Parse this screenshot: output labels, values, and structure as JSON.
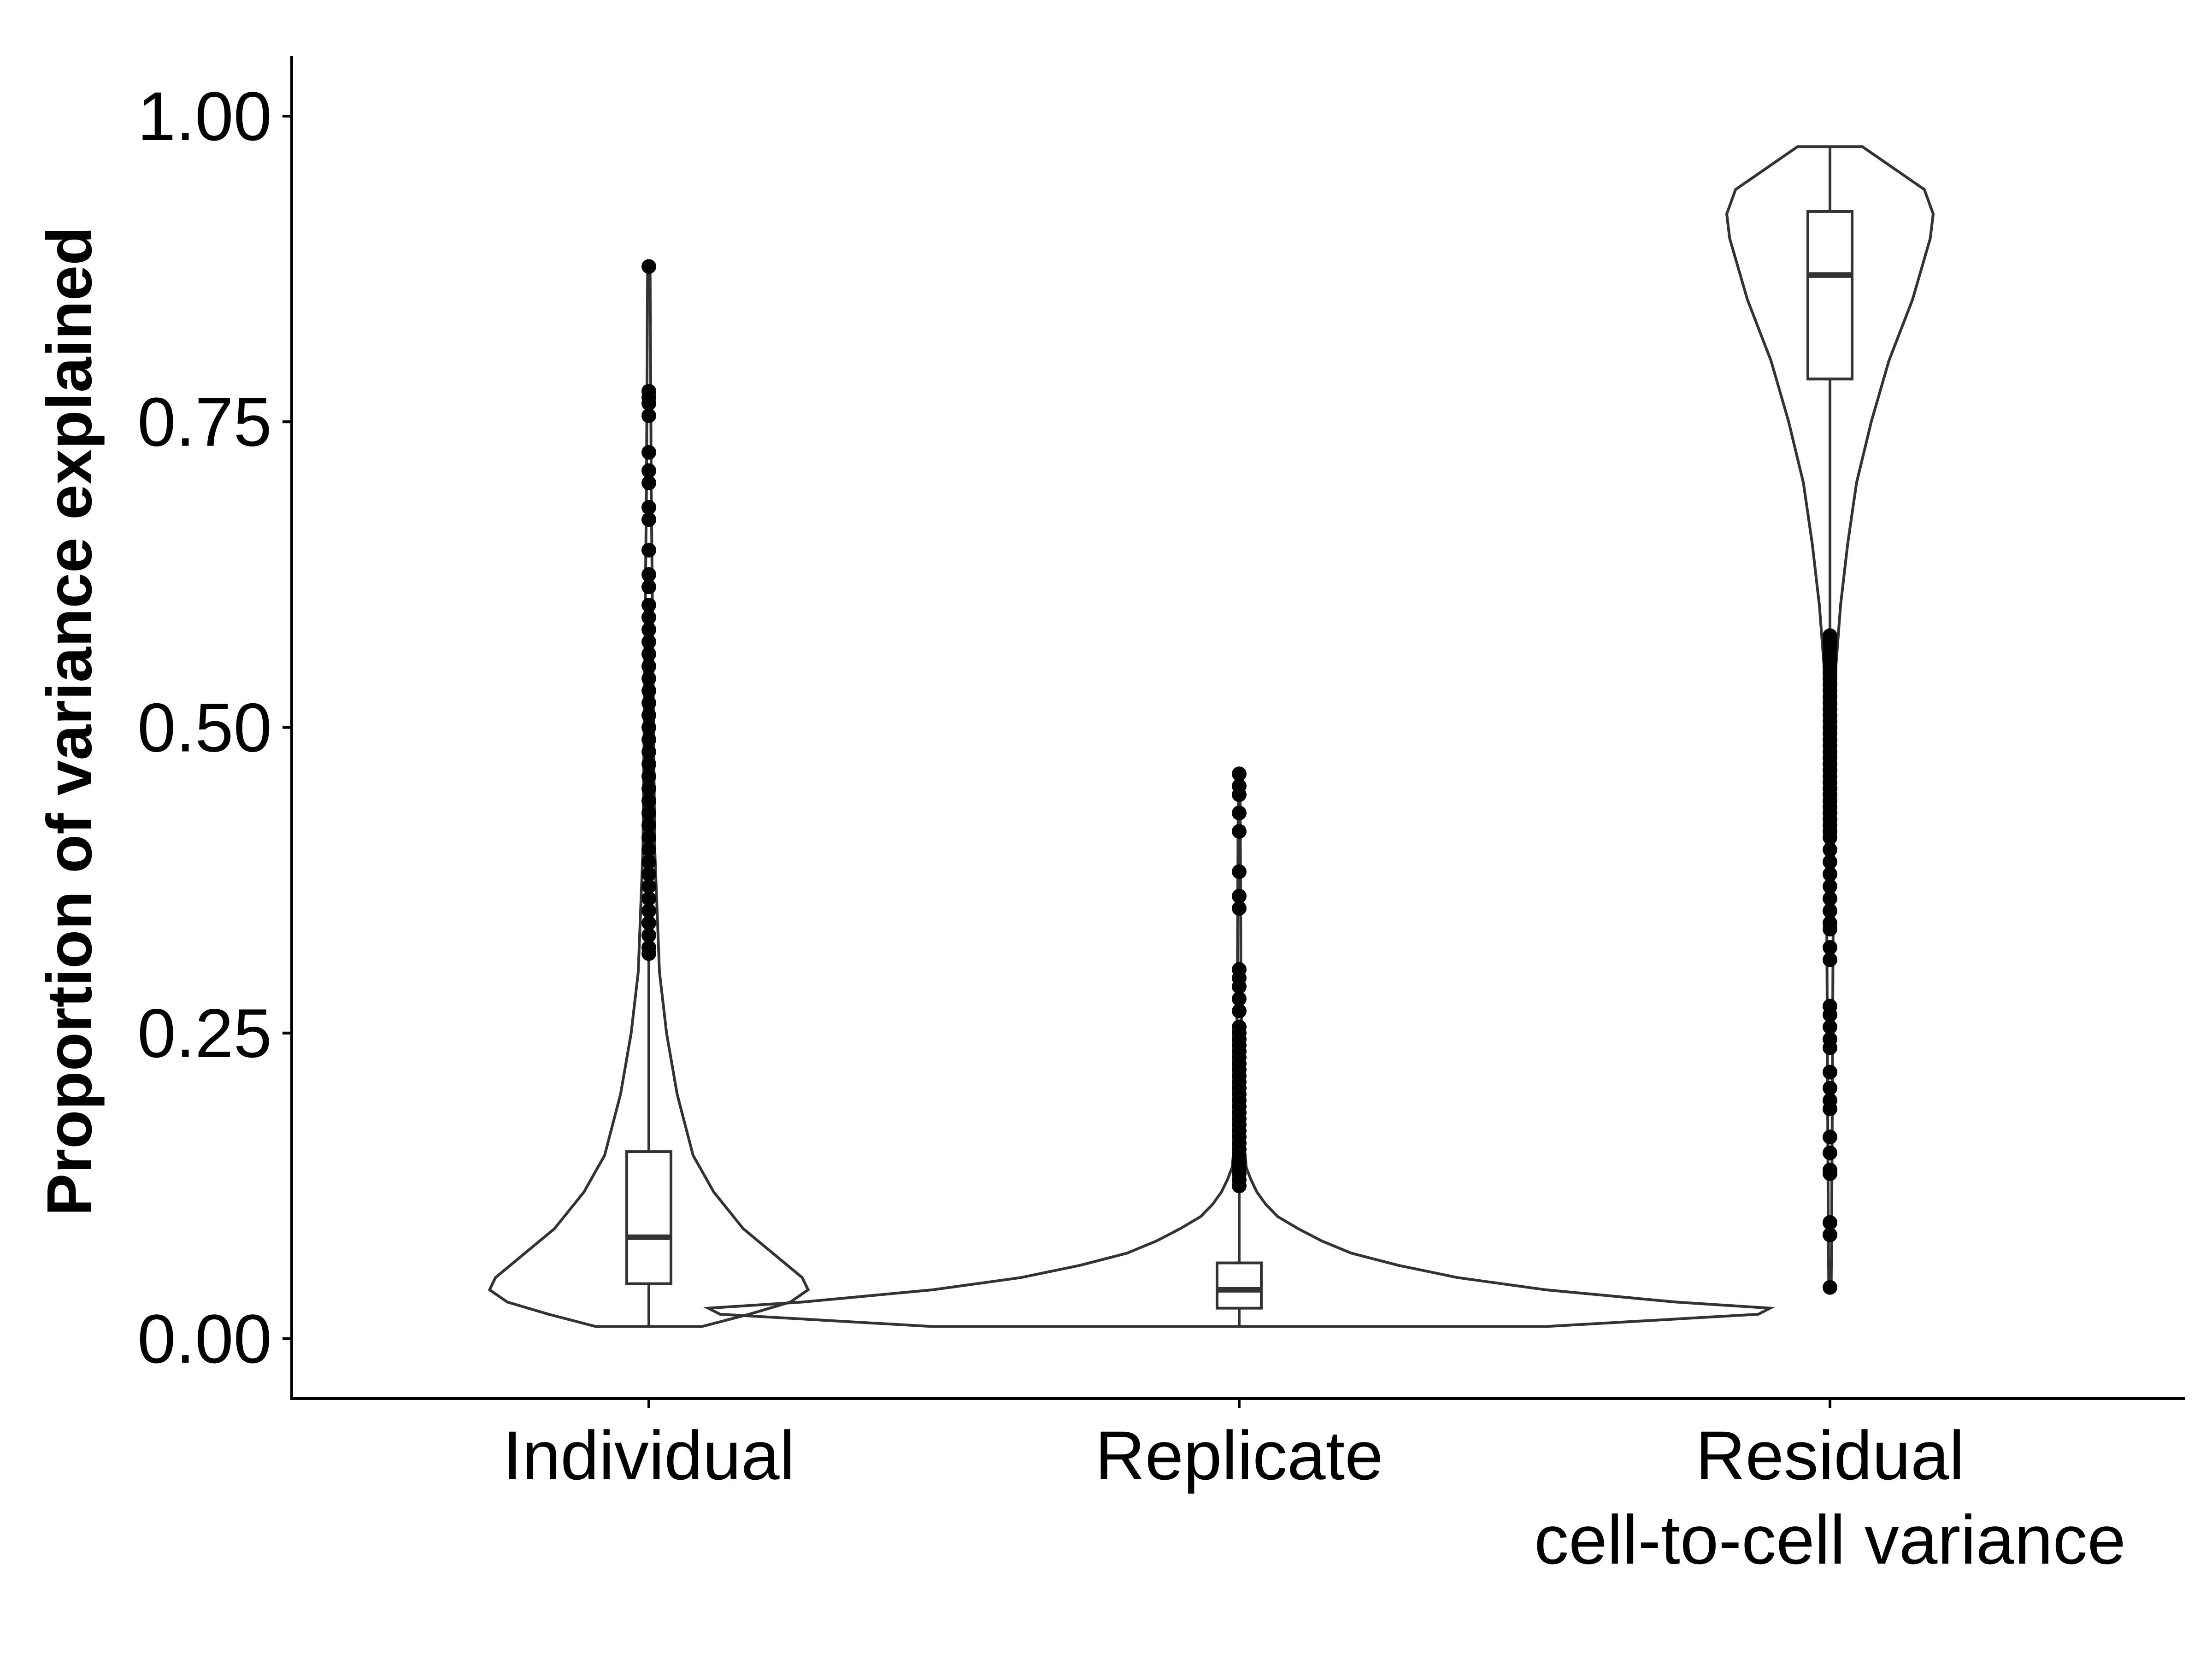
{
  "chart_data": {
    "type": "violin",
    "title": "",
    "xlabel": "",
    "ylabel": "Proportion of variance explained",
    "ylim": [
      -0.05,
      1.05
    ],
    "yticks": [
      0.0,
      0.25,
      0.5,
      0.75,
      1.0
    ],
    "ytick_labels": [
      "0.00",
      "0.25",
      "0.50",
      "0.75",
      "1.00"
    ],
    "grid": false,
    "legend": "none",
    "colors": {
      "outline": "#333333",
      "points": "#000000",
      "axis": "#000000"
    },
    "categories": [
      {
        "label_lines": [
          "Individual"
        ],
        "box": {
          "whisker_low": 0.01,
          "q1": 0.045,
          "median": 0.083,
          "q3": 0.153,
          "whisker_high": 0.31
        },
        "violin": {
          "y": [
            0.01,
            0.02,
            0.03,
            0.04,
            0.05,
            0.07,
            0.09,
            0.12,
            0.15,
            0.2,
            0.25,
            0.3,
            0.4,
            0.5,
            0.6,
            0.7,
            0.8,
            0.877
          ],
          "half_width": [
            0.09,
            0.17,
            0.24,
            0.27,
            0.26,
            0.21,
            0.16,
            0.11,
            0.075,
            0.048,
            0.03,
            0.018,
            0.01,
            0.008,
            0.006,
            0.004,
            0.003,
            0.002
          ]
        },
        "outliers": [
          0.877,
          0.775,
          0.77,
          0.765,
          0.755,
          0.725,
          0.71,
          0.7,
          0.68,
          0.67,
          0.645,
          0.625,
          0.615,
          0.6,
          0.59,
          0.58,
          0.57,
          0.56,
          0.55,
          0.54,
          0.53,
          0.52,
          0.51,
          0.5,
          0.49,
          0.48,
          0.47,
          0.46,
          0.45,
          0.44,
          0.43,
          0.42,
          0.41,
          0.4,
          0.39,
          0.38,
          0.37,
          0.36,
          0.35,
          0.34,
          0.33,
          0.32,
          0.315
        ]
      },
      {
        "label_lines": [
          "Replicate"
        ],
        "box": {
          "whisker_low": 0.01,
          "q1": 0.025,
          "median": 0.04,
          "q3": 0.062,
          "whisker_high": 0.12
        },
        "violin": {
          "y": [
            0.01,
            0.015,
            0.02,
            0.025,
            0.03,
            0.04,
            0.05,
            0.06,
            0.07,
            0.08,
            0.09,
            0.1,
            0.11,
            0.12,
            0.13,
            0.14,
            0.16,
            0.2,
            0.3,
            0.4,
            0.46
          ],
          "half_width": [
            0.52,
            0.7,
            0.88,
            0.9,
            0.74,
            0.52,
            0.37,
            0.27,
            0.19,
            0.14,
            0.1,
            0.065,
            0.045,
            0.03,
            0.02,
            0.012,
            0.008,
            0.005,
            0.003,
            0.002,
            0.0015
          ]
        },
        "outliers": [
          0.462,
          0.452,
          0.445,
          0.43,
          0.415,
          0.382,
          0.362,
          0.352,
          0.302,
          0.295,
          0.288,
          0.278,
          0.268,
          0.255,
          0.25,
          0.245,
          0.24,
          0.235,
          0.23,
          0.225,
          0.22,
          0.215,
          0.21,
          0.205,
          0.2,
          0.195,
          0.19,
          0.185,
          0.18,
          0.175,
          0.17,
          0.165,
          0.16,
          0.155,
          0.15,
          0.145,
          0.14,
          0.135,
          0.13,
          0.125
        ]
      },
      {
        "label_lines": [
          "Residual",
          "cell-to-cell variance"
        ],
        "box": {
          "whisker_low": 0.58,
          "q1": 0.785,
          "median": 0.87,
          "q3": 0.922,
          "whisker_high": 0.975
        },
        "violin": {
          "y": [
            0.042,
            0.1,
            0.2,
            0.3,
            0.4,
            0.5,
            0.55,
            0.6,
            0.65,
            0.7,
            0.75,
            0.8,
            0.85,
            0.9,
            0.92,
            0.94,
            0.96,
            0.975
          ],
          "half_width": [
            0.002,
            0.003,
            0.004,
            0.005,
            0.006,
            0.008,
            0.01,
            0.018,
            0.03,
            0.045,
            0.07,
            0.1,
            0.14,
            0.17,
            0.175,
            0.16,
            0.1,
            0.055
          ]
        },
        "outliers": [
          0.575,
          0.57,
          0.565,
          0.56,
          0.555,
          0.55,
          0.545,
          0.54,
          0.535,
          0.53,
          0.525,
          0.52,
          0.515,
          0.51,
          0.505,
          0.5,
          0.495,
          0.49,
          0.485,
          0.48,
          0.475,
          0.47,
          0.465,
          0.46,
          0.455,
          0.45,
          0.445,
          0.44,
          0.435,
          0.43,
          0.425,
          0.42,
          0.415,
          0.41,
          0.4,
          0.39,
          0.38,
          0.37,
          0.36,
          0.35,
          0.34,
          0.335,
          0.32,
          0.31,
          0.272,
          0.265,
          0.255,
          0.245,
          0.238,
          0.218,
          0.205,
          0.195,
          0.188,
          0.165,
          0.152,
          0.138,
          0.135,
          0.095,
          0.085,
          0.042
        ]
      }
    ]
  }
}
